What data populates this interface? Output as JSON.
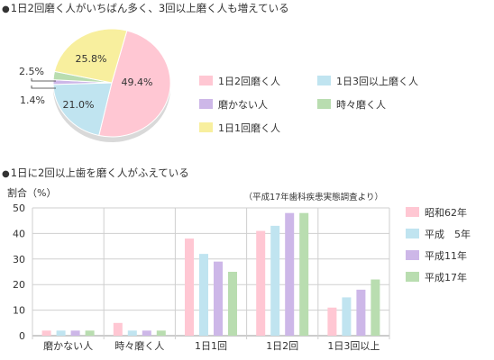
{
  "section1": {
    "title": "1日2回磨く人がいちばん多く、3回以上磨く人も増えている"
  },
  "section2": {
    "title": "1日に2回以上歯を磨く人がふえている"
  },
  "chart_data": [
    {
      "type": "pie",
      "slices": [
        {
          "label": "1日2回磨く人",
          "value": 49.4,
          "value_label": "49.4%",
          "color": "#ffc7d3"
        },
        {
          "label": "1日3回以上磨く人",
          "value": 21.0,
          "value_label": "21.0%",
          "color": "#c0e4f0"
        },
        {
          "label": "磨かない人",
          "value": 1.4,
          "value_label": "1.4%",
          "color": "#cdb7e8"
        },
        {
          "label": "時々磨く人",
          "value": 2.5,
          "value_label": "2.5%",
          "color": "#b9ddb0"
        },
        {
          "label": "1日1回磨く人",
          "value": 25.8,
          "value_label": "25.8%",
          "color": "#f8ef9e"
        }
      ],
      "legend": [
        "1日2回磨く人",
        "1日3回以上磨く人",
        "磨かない人",
        "時々磨く人",
        "1日1回磨く人"
      ]
    },
    {
      "type": "bar",
      "ylabel": "割合（%）",
      "source_note": "（平成17年歯科疾患実態調査より）",
      "ylim": [
        0,
        50
      ],
      "yticks": [
        0,
        10,
        20,
        30,
        40,
        50
      ],
      "grid": true,
      "legend_position": "right",
      "categories": [
        "磨かない人",
        "時々磨く人",
        "1日1回",
        "1日2回",
        "1日3回以上"
      ],
      "series": [
        {
          "name": "昭和62年",
          "color": "#ffc7d3",
          "values": [
            2,
            5,
            38,
            41,
            11
          ]
        },
        {
          "name": "平成　5年",
          "color": "#c0e4f0",
          "values": [
            2,
            2,
            32,
            43,
            15
          ]
        },
        {
          "name": "平成11年",
          "color": "#cdb7e8",
          "values": [
            2,
            2,
            29,
            48,
            18
          ]
        },
        {
          "name": "平成17年",
          "color": "#b9ddb0",
          "values": [
            2,
            2,
            25,
            48,
            22
          ]
        }
      ]
    }
  ]
}
